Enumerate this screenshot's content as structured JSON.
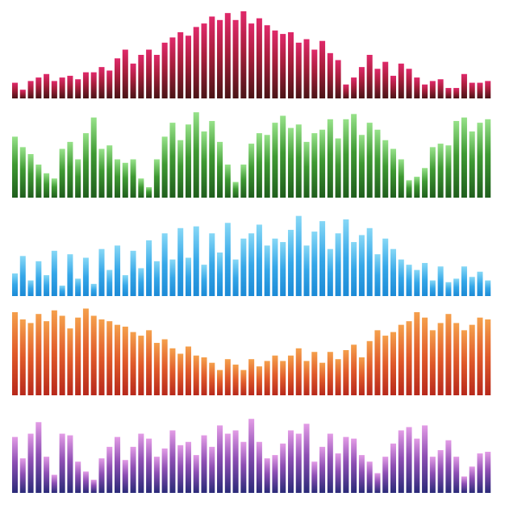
{
  "chart_data": [
    {
      "type": "bar",
      "bar_heights": [
        0.18,
        0.1,
        0.2,
        0.24,
        0.28,
        0.2,
        0.24,
        0.26,
        0.22,
        0.3,
        0.3,
        0.36,
        0.32,
        0.46,
        0.56,
        0.4,
        0.5,
        0.56,
        0.5,
        0.64,
        0.7,
        0.76,
        0.72,
        0.82,
        0.86,
        0.94,
        0.9,
        0.98,
        0.9,
        1.0,
        0.86,
        0.92,
        0.84,
        0.78,
        0.74,
        0.76,
        0.64,
        0.68,
        0.56,
        0.66,
        0.52,
        0.44,
        0.16,
        0.24,
        0.36,
        0.5,
        0.34,
        0.42,
        0.26,
        0.4,
        0.34,
        0.24,
        0.16,
        0.2,
        0.22,
        0.12,
        0.12,
        0.28,
        0.18,
        0.18,
        0.2
      ],
      "colors": {
        "top": "#e0296a",
        "bottom": "#4a1416"
      }
    },
    {
      "type": "bar",
      "bar_heights": [
        0.7,
        0.58,
        0.5,
        0.38,
        0.28,
        0.22,
        0.56,
        0.64,
        0.44,
        0.74,
        0.92,
        0.56,
        0.6,
        0.44,
        0.4,
        0.44,
        0.22,
        0.12,
        0.44,
        0.7,
        0.86,
        0.66,
        0.84,
        0.98,
        0.76,
        0.88,
        0.64,
        0.38,
        0.18,
        0.38,
        0.62,
        0.74,
        0.72,
        0.86,
        0.94,
        0.8,
        0.84,
        0.64,
        0.74,
        0.78,
        0.9,
        0.68,
        0.9,
        0.96,
        0.72,
        0.86,
        0.78,
        0.66,
        0.56,
        0.44,
        0.2,
        0.24,
        0.34,
        0.58,
        0.62,
        0.6,
        0.88,
        0.92,
        0.76,
        0.86,
        0.9
      ]
    },
    {
      "type": "bar",
      "bar_heights": [
        0.26,
        0.46,
        0.18,
        0.4,
        0.24,
        0.52,
        0.12,
        0.48,
        0.2,
        0.44,
        0.14,
        0.54,
        0.3,
        0.58,
        0.24,
        0.52,
        0.32,
        0.64,
        0.4,
        0.72,
        0.42,
        0.78,
        0.44,
        0.8,
        0.36,
        0.72,
        0.5,
        0.84,
        0.42,
        0.66,
        0.72,
        0.82,
        0.58,
        0.66,
        0.62,
        0.76,
        0.92,
        0.58,
        0.74,
        0.86,
        0.54,
        0.72,
        0.88,
        0.62,
        0.7,
        0.78,
        0.48,
        0.66,
        0.54,
        0.42,
        0.36,
        0.3,
        0.38,
        0.18,
        0.34,
        0.16,
        0.2,
        0.34,
        0.22,
        0.28,
        0.18
      ]
    },
    {
      "type": "bar",
      "bar_heights": [
        0.92,
        0.84,
        0.8,
        0.9,
        0.82,
        0.94,
        0.88,
        0.74,
        0.86,
        0.96,
        0.88,
        0.84,
        0.82,
        0.78,
        0.76,
        0.7,
        0.66,
        0.72,
        0.58,
        0.62,
        0.52,
        0.46,
        0.54,
        0.44,
        0.42,
        0.36,
        0.28,
        0.4,
        0.34,
        0.28,
        0.4,
        0.32,
        0.38,
        0.44,
        0.38,
        0.44,
        0.52,
        0.38,
        0.48,
        0.36,
        0.48,
        0.4,
        0.5,
        0.56,
        0.42,
        0.6,
        0.72,
        0.66,
        0.7,
        0.78,
        0.82,
        0.92,
        0.86,
        0.72,
        0.8,
        0.9,
        0.8,
        0.72,
        0.78,
        0.86,
        0.84
      ]
    },
    {
      "type": "bar",
      "bar_heights": [
        0.68,
        0.42,
        0.72,
        0.86,
        0.44,
        0.22,
        0.72,
        0.7,
        0.38,
        0.26,
        0.16,
        0.42,
        0.56,
        0.68,
        0.4,
        0.56,
        0.72,
        0.66,
        0.44,
        0.54,
        0.76,
        0.58,
        0.62,
        0.46,
        0.7,
        0.56,
        0.82,
        0.72,
        0.76,
        0.62,
        0.9,
        0.62,
        0.42,
        0.46,
        0.6,
        0.76,
        0.72,
        0.84,
        0.38,
        0.56,
        0.72,
        0.48,
        0.68,
        0.66,
        0.46,
        0.38,
        0.24,
        0.44,
        0.6,
        0.76,
        0.8,
        0.66,
        0.82,
        0.44,
        0.52,
        0.64,
        0.44,
        0.2,
        0.32,
        0.48,
        0.5
      ]
    }
  ]
}
